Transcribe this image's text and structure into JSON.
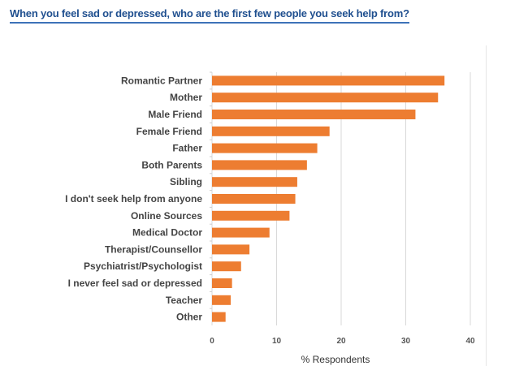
{
  "chart_data": {
    "type": "bar",
    "orientation": "horizontal",
    "title": "When you feel sad or depressed, who are the first few people you seek help from?",
    "categories": [
      "Romantic Partner",
      "Mother",
      "Male Friend",
      "Female Friend",
      "Father",
      "Both Parents",
      "Sibling",
      "I don't seek help from anyone",
      "Online Sources",
      "Medical Doctor",
      "Therapist/Counsellor",
      "Psychiatrist/Psychologist",
      "I never feel sad or depressed",
      "Teacher",
      "Other"
    ],
    "values": [
      36.0,
      35.0,
      31.5,
      18.2,
      16.3,
      14.7,
      13.2,
      12.9,
      12.0,
      8.9,
      5.8,
      4.5,
      3.1,
      2.9,
      2.1
    ],
    "xlabel": "% Respondents",
    "ylabel": "",
    "xlim": [
      0,
      40
    ],
    "xticks": [
      "0",
      "10",
      "20",
      "30",
      "40"
    ],
    "grid": true,
    "bar_color": "#ed7d31"
  }
}
